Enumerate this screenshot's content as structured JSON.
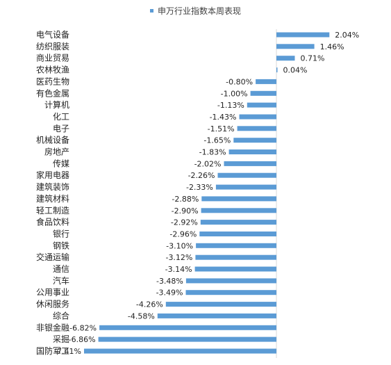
{
  "chart_data": {
    "type": "bar",
    "orientation": "horizontal",
    "title": "",
    "xlabel": "",
    "ylabel": "",
    "legend": {
      "position": "top",
      "entries": [
        "申万行业指数本周表现"
      ]
    },
    "grid": false,
    "xlim": [
      -7.41,
      2.04
    ],
    "series": [
      {
        "name": "申万行业指数本周表现",
        "color": "#5B9BD5",
        "values": [
          2.04,
          1.46,
          0.71,
          0.04,
          -0.8,
          -1.0,
          -1.13,
          -1.43,
          -1.51,
          -1.65,
          -1.83,
          -2.02,
          -2.26,
          -2.33,
          -2.88,
          -2.9,
          -2.92,
          -2.96,
          -3.1,
          -3.12,
          -3.14,
          -3.48,
          -3.49,
          -4.26,
          -4.58,
          -6.82,
          -6.86,
          -7.41
        ]
      }
    ],
    "categories": [
      "电气设备",
      "纺织服装",
      "商业贸易",
      "农林牧渔",
      "医药生物",
      "有色金属",
      "计算机",
      "化工",
      "电子",
      "机械设备",
      "房地产",
      "传媒",
      "家用电器",
      "建筑装饰",
      "建筑材料",
      "轻工制造",
      "食品饮料",
      "银行",
      "钢铁",
      "交通运输",
      "通信",
      "汽车",
      "公用事业",
      "休闲服务",
      "综合",
      "非银金融",
      "采掘",
      "国防军工"
    ],
    "data_labels": [
      "2.04%",
      "1.46%",
      "0.71%",
      "0.04%",
      "-0.80%",
      "-1.00%",
      "-1.13%",
      "-1.43%",
      "-1.51%",
      "-1.65%",
      "-1.83%",
      "-2.02%",
      "-2.26%",
      "-2.33%",
      "-2.88%",
      "-2.90%",
      "-2.92%",
      "-2.96%",
      "-3.10%",
      "-3.12%",
      "-3.14%",
      "-3.48%",
      "-3.49%",
      "-4.26%",
      "-4.58%",
      "-6.82%",
      "-6.86%",
      "-7.41%"
    ]
  }
}
